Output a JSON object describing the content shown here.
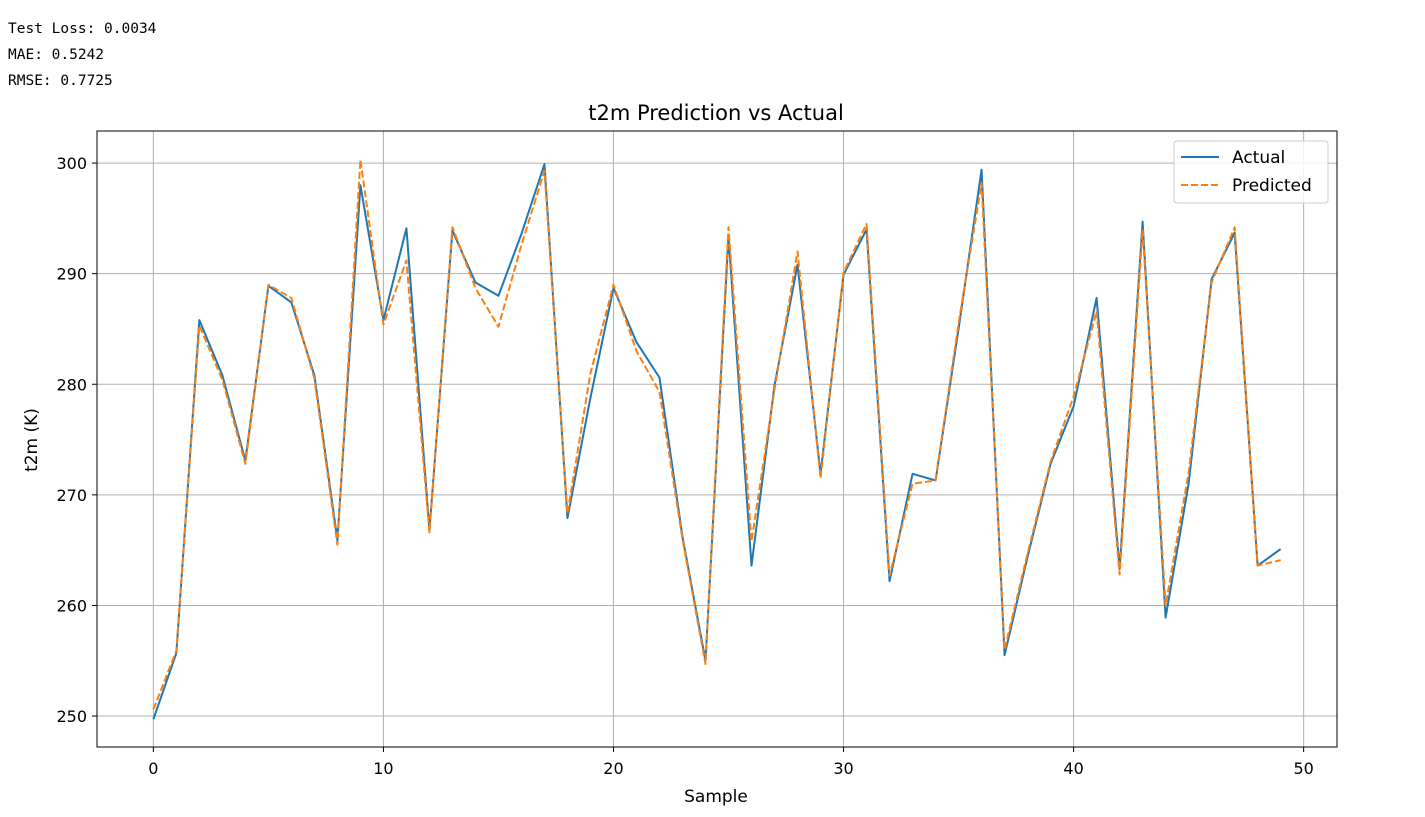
{
  "output": {
    "lines": [
      "Test Loss: 0.0034",
      "MAE: 0.5242",
      "RMSE: 0.7725"
    ]
  },
  "chart_data": {
    "type": "line",
    "title": "t2m Prediction vs Actual",
    "xlabel": "Sample",
    "ylabel": "t2m (K)",
    "xlim": [
      -2.45,
      51.45
    ],
    "ylim": [
      247.2,
      302.9
    ],
    "xticks": [
      0,
      10,
      20,
      30,
      40,
      50
    ],
    "yticks": [
      250,
      260,
      270,
      280,
      290,
      300
    ],
    "grid": true,
    "legend_position": "top-right",
    "x": [
      0,
      1,
      2,
      3,
      4,
      5,
      6,
      7,
      8,
      9,
      10,
      11,
      12,
      13,
      14,
      15,
      16,
      17,
      18,
      19,
      20,
      21,
      22,
      23,
      24,
      25,
      26,
      27,
      28,
      29,
      30,
      31,
      32,
      33,
      34,
      35,
      36,
      37,
      38,
      39,
      40,
      41,
      42,
      43,
      44,
      45,
      46,
      47,
      48,
      49
    ],
    "series": [
      {
        "name": "Actual",
        "color": "#1f77b4",
        "dash": "solid",
        "values": [
          249.7,
          255.7,
          285.8,
          280.8,
          273.1,
          288.9,
          287.4,
          280.8,
          265.9,
          298.0,
          285.8,
          294.1,
          266.8,
          293.9,
          289.2,
          288.0,
          293.6,
          299.9,
          267.9,
          278.8,
          288.7,
          283.8,
          280.6,
          266.2,
          255.0,
          293.4,
          263.6,
          279.9,
          290.8,
          271.9,
          289.9,
          294.0,
          262.2,
          271.9,
          271.3,
          285.0,
          299.4,
          255.5,
          264.4,
          272.8,
          278.0,
          287.8,
          263.3,
          294.7,
          258.9,
          271.0,
          289.5,
          293.7,
          263.6,
          265.1
        ]
      },
      {
        "name": "Predicted",
        "color": "#ff7f0e",
        "dash": "dashed",
        "values": [
          250.6,
          255.9,
          285.3,
          280.4,
          272.8,
          289.0,
          287.8,
          280.5,
          265.5,
          300.3,
          285.4,
          291.2,
          266.6,
          294.2,
          288.7,
          285.2,
          292.6,
          299.3,
          268.3,
          281.0,
          289.0,
          283.0,
          279.3,
          266.0,
          254.7,
          294.2,
          265.8,
          279.5,
          292.0,
          271.5,
          290.1,
          294.5,
          262.7,
          271.0,
          271.3,
          285.5,
          298.2,
          256.0,
          264.7,
          273.0,
          278.9,
          286.6,
          262.8,
          294.0,
          260.0,
          272.0,
          289.2,
          294.2,
          263.6,
          264.1
        ]
      }
    ]
  }
}
